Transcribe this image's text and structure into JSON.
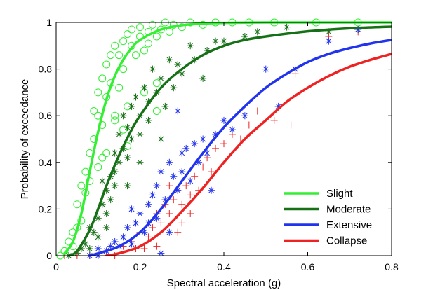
{
  "chart_data": {
    "type": "line",
    "title": "",
    "xlabel": "Spectral acceleration (g)",
    "ylabel": "Probability of exceedance",
    "xlim": [
      0,
      0.8
    ],
    "ylim": [
      0,
      1
    ],
    "x_ticks": [
      {
        "value": 0,
        "label": "0"
      },
      {
        "value": 0.2,
        "label": "0.2"
      },
      {
        "value": 0.4,
        "label": "0.4"
      },
      {
        "value": 0.6,
        "label": "0.6"
      },
      {
        "value": 0.8,
        "label": "0.8"
      }
    ],
    "y_ticks": [
      {
        "value": 0,
        "label": "0"
      },
      {
        "value": 0.2,
        "label": "0.2"
      },
      {
        "value": 0.4,
        "label": "0.4"
      },
      {
        "value": 0.6,
        "label": "0.6"
      },
      {
        "value": 0.8,
        "label": "0.8"
      },
      {
        "value": 1,
        "label": "1"
      }
    ],
    "grid": false,
    "legend_position": "bottom-right",
    "series": [
      {
        "name": "Slight",
        "color": "#33ee33",
        "marker": "circle",
        "curve": [
          [
            0.02,
            0.01
          ],
          [
            0.04,
            0.06
          ],
          [
            0.06,
            0.18
          ],
          [
            0.08,
            0.36
          ],
          [
            0.1,
            0.53
          ],
          [
            0.12,
            0.67
          ],
          [
            0.14,
            0.77
          ],
          [
            0.16,
            0.84
          ],
          [
            0.18,
            0.89
          ],
          [
            0.2,
            0.925
          ],
          [
            0.25,
            0.97
          ],
          [
            0.3,
            0.988
          ],
          [
            0.35,
            0.995
          ],
          [
            0.4,
            0.998
          ],
          [
            0.5,
            1.0
          ],
          [
            0.6,
            1.0
          ],
          [
            0.8,
            1.0
          ]
        ],
        "points": [
          [
            0.01,
            0.0
          ],
          [
            0.02,
            0.02
          ],
          [
            0.03,
            0.06
          ],
          [
            0.04,
            0.1
          ],
          [
            0.04,
            0.04
          ],
          [
            0.05,
            0.12
          ],
          [
            0.05,
            0.22
          ],
          [
            0.06,
            0.15
          ],
          [
            0.06,
            0.3
          ],
          [
            0.07,
            0.36
          ],
          [
            0.07,
            0.27
          ],
          [
            0.08,
            0.44
          ],
          [
            0.08,
            0.32
          ],
          [
            0.09,
            0.5
          ],
          [
            0.09,
            0.62
          ],
          [
            0.1,
            0.6
          ],
          [
            0.1,
            0.7
          ],
          [
            0.11,
            0.76
          ],
          [
            0.11,
            0.56
          ],
          [
            0.12,
            0.82
          ],
          [
            0.12,
            0.68
          ],
          [
            0.13,
            0.74
          ],
          [
            0.13,
            0.86
          ],
          [
            0.14,
            0.9
          ],
          [
            0.14,
            0.6
          ],
          [
            0.15,
            0.86
          ],
          [
            0.15,
            0.72
          ],
          [
            0.16,
            0.92
          ],
          [
            0.16,
            0.8
          ],
          [
            0.17,
            0.95
          ],
          [
            0.17,
            0.64
          ],
          [
            0.18,
            0.9
          ],
          [
            0.18,
            0.97
          ],
          [
            0.19,
            0.86
          ],
          [
            0.2,
            0.94
          ],
          [
            0.2,
            0.98
          ],
          [
            0.21,
            0.88
          ],
          [
            0.22,
            0.96
          ],
          [
            0.22,
            0.91
          ],
          [
            0.23,
            0.99
          ],
          [
            0.24,
            0.94
          ],
          [
            0.25,
            0.97
          ],
          [
            0.26,
            1.0
          ],
          [
            0.27,
            0.96
          ],
          [
            0.28,
            0.99
          ],
          [
            0.3,
            0.98
          ],
          [
            0.32,
            1.0
          ],
          [
            0.35,
            0.99
          ],
          [
            0.38,
            1.0
          ],
          [
            0.42,
            1.0
          ],
          [
            0.46,
            1.0
          ],
          [
            0.52,
            1.0
          ],
          [
            0.62,
            1.0
          ],
          [
            0.72,
            1.0
          ],
          [
            0.14,
            0.58
          ],
          [
            0.12,
            0.44
          ],
          [
            0.21,
            0.7
          ],
          [
            0.24,
            0.74
          ],
          [
            0.11,
            0.42
          ],
          [
            0.17,
            0.47
          ],
          [
            0.24,
            0.62
          ],
          [
            0.1,
            0.38
          ],
          [
            0.16,
            0.54
          ]
        ]
      },
      {
        "name": "Moderate",
        "color": "#167016",
        "marker": "asterisk",
        "curve": [
          [
            0.03,
            0.0
          ],
          [
            0.05,
            0.02
          ],
          [
            0.08,
            0.11
          ],
          [
            0.1,
            0.2
          ],
          [
            0.12,
            0.3
          ],
          [
            0.15,
            0.43
          ],
          [
            0.18,
            0.54
          ],
          [
            0.2,
            0.6
          ],
          [
            0.25,
            0.72
          ],
          [
            0.3,
            0.8
          ],
          [
            0.35,
            0.86
          ],
          [
            0.4,
            0.9
          ],
          [
            0.45,
            0.925
          ],
          [
            0.5,
            0.94
          ],
          [
            0.6,
            0.962
          ],
          [
            0.7,
            0.975
          ],
          [
            0.8,
            0.982
          ]
        ],
        "points": [
          [
            0.03,
            0.0
          ],
          [
            0.05,
            0.01
          ],
          [
            0.06,
            0.03
          ],
          [
            0.07,
            0.05
          ],
          [
            0.08,
            0.12
          ],
          [
            0.08,
            0.03
          ],
          [
            0.09,
            0.1
          ],
          [
            0.1,
            0.16
          ],
          [
            0.1,
            0.08
          ],
          [
            0.11,
            0.22
          ],
          [
            0.11,
            0.32
          ],
          [
            0.12,
            0.28
          ],
          [
            0.12,
            0.18
          ],
          [
            0.13,
            0.34
          ],
          [
            0.13,
            0.24
          ],
          [
            0.14,
            0.36
          ],
          [
            0.14,
            0.44
          ],
          [
            0.15,
            0.52
          ],
          [
            0.15,
            0.4
          ],
          [
            0.16,
            0.46
          ],
          [
            0.16,
            0.6
          ],
          [
            0.17,
            0.55
          ],
          [
            0.17,
            0.42
          ],
          [
            0.18,
            0.64
          ],
          [
            0.18,
            0.5
          ],
          [
            0.19,
            0.68
          ],
          [
            0.2,
            0.6
          ],
          [
            0.2,
            0.52
          ],
          [
            0.21,
            0.72
          ],
          [
            0.22,
            0.58
          ],
          [
            0.23,
            0.8
          ],
          [
            0.24,
            0.7
          ],
          [
            0.25,
            0.76
          ],
          [
            0.26,
            0.64
          ],
          [
            0.27,
            0.84
          ],
          [
            0.28,
            0.72
          ],
          [
            0.29,
            0.82
          ],
          [
            0.3,
            0.78
          ],
          [
            0.32,
            0.9
          ],
          [
            0.33,
            0.84
          ],
          [
            0.35,
            0.76
          ],
          [
            0.36,
            0.88
          ],
          [
            0.38,
            0.92
          ],
          [
            0.4,
            0.92
          ],
          [
            0.45,
            0.94
          ],
          [
            0.48,
            0.96
          ],
          [
            0.55,
            0.98
          ],
          [
            0.65,
            0.96
          ],
          [
            0.72,
            0.97
          ],
          [
            0.14,
            0.3
          ],
          [
            0.17,
            0.3
          ],
          [
            0.12,
            0.12
          ],
          [
            0.2,
            0.4
          ],
          [
            0.25,
            0.5
          ],
          [
            0.22,
            0.66
          ]
        ]
      },
      {
        "name": "Extensive",
        "color": "#2233ee",
        "marker": "asterisk",
        "curve": [
          [
            0.08,
            0.0
          ],
          [
            0.1,
            0.01
          ],
          [
            0.15,
            0.04
          ],
          [
            0.2,
            0.1
          ],
          [
            0.25,
            0.2
          ],
          [
            0.3,
            0.32
          ],
          [
            0.35,
            0.44
          ],
          [
            0.4,
            0.55
          ],
          [
            0.45,
            0.64
          ],
          [
            0.5,
            0.72
          ],
          [
            0.55,
            0.78
          ],
          [
            0.6,
            0.83
          ],
          [
            0.65,
            0.865
          ],
          [
            0.7,
            0.89
          ],
          [
            0.75,
            0.91
          ],
          [
            0.8,
            0.925
          ]
        ],
        "points": [
          [
            0.08,
            0.0
          ],
          [
            0.1,
            0.0
          ],
          [
            0.1,
            0.03
          ],
          [
            0.12,
            0.02
          ],
          [
            0.13,
            0.04
          ],
          [
            0.14,
            0.06
          ],
          [
            0.15,
            0.04
          ],
          [
            0.16,
            0.08
          ],
          [
            0.17,
            0.12
          ],
          [
            0.18,
            0.2
          ],
          [
            0.18,
            0.05
          ],
          [
            0.19,
            0.14
          ],
          [
            0.2,
            0.18
          ],
          [
            0.21,
            0.1
          ],
          [
            0.22,
            0.22
          ],
          [
            0.23,
            0.26
          ],
          [
            0.24,
            0.3
          ],
          [
            0.24,
            0.16
          ],
          [
            0.25,
            0.36
          ],
          [
            0.26,
            0.24
          ],
          [
            0.27,
            0.4
          ],
          [
            0.28,
            0.34
          ],
          [
            0.29,
            0.28
          ],
          [
            0.3,
            0.44
          ],
          [
            0.3,
            0.36
          ],
          [
            0.31,
            0.46
          ],
          [
            0.32,
            0.32
          ],
          [
            0.33,
            0.48
          ],
          [
            0.34,
            0.4
          ],
          [
            0.35,
            0.5
          ],
          [
            0.36,
            0.44
          ],
          [
            0.37,
            0.28
          ],
          [
            0.38,
            0.52
          ],
          [
            0.4,
            0.58
          ],
          [
            0.42,
            0.54
          ],
          [
            0.45,
            0.6
          ],
          [
            0.5,
            0.8
          ],
          [
            0.53,
            0.64
          ],
          [
            0.57,
            0.8
          ],
          [
            0.65,
            0.92
          ],
          [
            0.72,
            0.97
          ],
          [
            0.29,
            0.62
          ],
          [
            0.27,
            0.1
          ],
          [
            0.22,
            0.14
          ],
          [
            0.25,
            0.01
          ]
        ]
      },
      {
        "name": "Collapse",
        "color": "#ee2222",
        "marker": "plus",
        "curve": [
          [
            0.12,
            0.0
          ],
          [
            0.15,
            0.01
          ],
          [
            0.2,
            0.04
          ],
          [
            0.25,
            0.1
          ],
          [
            0.3,
            0.19
          ],
          [
            0.35,
            0.29
          ],
          [
            0.4,
            0.4
          ],
          [
            0.45,
            0.5
          ],
          [
            0.5,
            0.58
          ],
          [
            0.55,
            0.66
          ],
          [
            0.6,
            0.72
          ],
          [
            0.65,
            0.77
          ],
          [
            0.7,
            0.81
          ],
          [
            0.75,
            0.84
          ],
          [
            0.8,
            0.865
          ]
        ],
        "points": [
          [
            0.02,
            0.0
          ],
          [
            0.05,
            0.0
          ],
          [
            0.08,
            0.0
          ],
          [
            0.1,
            0.0
          ],
          [
            0.12,
            0.02
          ],
          [
            0.14,
            0.0
          ],
          [
            0.16,
            0.04
          ],
          [
            0.18,
            0.06
          ],
          [
            0.2,
            0.1
          ],
          [
            0.21,
            0.03
          ],
          [
            0.22,
            0.08
          ],
          [
            0.23,
            0.12
          ],
          [
            0.24,
            0.18
          ],
          [
            0.25,
            0.14
          ],
          [
            0.26,
            0.22
          ],
          [
            0.27,
            0.18
          ],
          [
            0.28,
            0.24
          ],
          [
            0.29,
            0.28
          ],
          [
            0.3,
            0.22
          ],
          [
            0.31,
            0.3
          ],
          [
            0.32,
            0.26
          ],
          [
            0.33,
            0.34
          ],
          [
            0.34,
            0.28
          ],
          [
            0.35,
            0.38
          ],
          [
            0.36,
            0.42
          ],
          [
            0.37,
            0.36
          ],
          [
            0.38,
            0.46
          ],
          [
            0.4,
            0.48
          ],
          [
            0.42,
            0.52
          ],
          [
            0.44,
            0.5
          ],
          [
            0.46,
            0.56
          ],
          [
            0.48,
            0.62
          ],
          [
            0.52,
            0.58
          ],
          [
            0.56,
            0.56
          ],
          [
            0.57,
            0.78
          ],
          [
            0.65,
            0.94
          ],
          [
            0.72,
            0.96
          ],
          [
            0.3,
            0.14
          ],
          [
            0.32,
            0.18
          ],
          [
            0.27,
            0.3
          ],
          [
            0.29,
            0.1
          ],
          [
            0.24,
            0.04
          ],
          [
            0.19,
            0.03
          ]
        ]
      }
    ]
  }
}
